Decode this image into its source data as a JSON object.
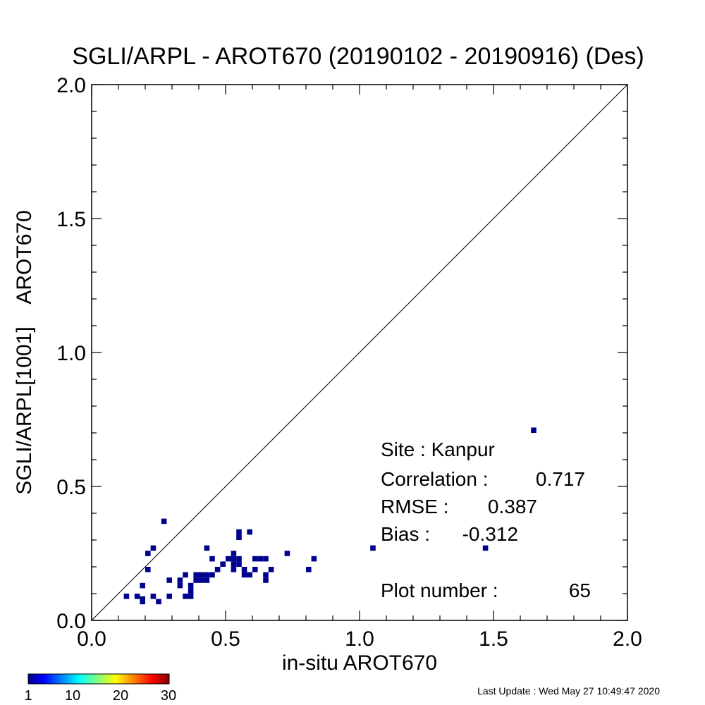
{
  "chart_data": {
    "type": "heatmap",
    "title": "SGLI/ARPL - AROT670 (20190102 - 20190916) (Des)",
    "xlabel": "in-situ AROT670",
    "ylabel": "SGLI/ARPL[1001]    AROT670",
    "xlim": [
      0.0,
      2.0
    ],
    "ylim": [
      0.0,
      2.0
    ],
    "x_tick_labels": [
      "0.0",
      "0.5",
      "1.0",
      "1.5",
      "2.0"
    ],
    "y_tick_labels": [
      "0.0",
      "0.5",
      "1.0",
      "1.5",
      "2.0"
    ],
    "x_ticks": [
      0.0,
      0.5,
      1.0,
      1.5,
      2.0
    ],
    "y_ticks": [
      0.0,
      0.5,
      1.0,
      1.5,
      2.0
    ],
    "reference_line": "1:1",
    "bin_size": 0.02,
    "cell_color": "#00008f",
    "points": [
      [
        0.13,
        0.09
      ],
      [
        0.17,
        0.09
      ],
      [
        0.19,
        0.08
      ],
      [
        0.19,
        0.07
      ],
      [
        0.19,
        0.13
      ],
      [
        0.21,
        0.19
      ],
      [
        0.21,
        0.25
      ],
      [
        0.23,
        0.27
      ],
      [
        0.23,
        0.09
      ],
      [
        0.25,
        0.07
      ],
      [
        0.27,
        0.37
      ],
      [
        0.29,
        0.09
      ],
      [
        0.29,
        0.15
      ],
      [
        0.33,
        0.15
      ],
      [
        0.33,
        0.13
      ],
      [
        0.35,
        0.09
      ],
      [
        0.35,
        0.17
      ],
      [
        0.37,
        0.09
      ],
      [
        0.37,
        0.11
      ],
      [
        0.37,
        0.13
      ],
      [
        0.39,
        0.17
      ],
      [
        0.39,
        0.15
      ],
      [
        0.41,
        0.15
      ],
      [
        0.41,
        0.17
      ],
      [
        0.43,
        0.15
      ],
      [
        0.43,
        0.17
      ],
      [
        0.43,
        0.27
      ],
      [
        0.45,
        0.17
      ],
      [
        0.45,
        0.23
      ],
      [
        0.47,
        0.19
      ],
      [
        0.49,
        0.21
      ],
      [
        0.51,
        0.23
      ],
      [
        0.53,
        0.25
      ],
      [
        0.53,
        0.23
      ],
      [
        0.53,
        0.21
      ],
      [
        0.53,
        0.19
      ],
      [
        0.55,
        0.23
      ],
      [
        0.55,
        0.21
      ],
      [
        0.55,
        0.31
      ],
      [
        0.55,
        0.33
      ],
      [
        0.57,
        0.17
      ],
      [
        0.57,
        0.19
      ],
      [
        0.59,
        0.17
      ],
      [
        0.59,
        0.33
      ],
      [
        0.61,
        0.19
      ],
      [
        0.61,
        0.23
      ],
      [
        0.63,
        0.23
      ],
      [
        0.65,
        0.23
      ],
      [
        0.65,
        0.17
      ],
      [
        0.65,
        0.15
      ],
      [
        0.67,
        0.19
      ],
      [
        0.73,
        0.25
      ],
      [
        0.81,
        0.19
      ],
      [
        0.83,
        0.23
      ],
      [
        1.05,
        0.27
      ],
      [
        1.47,
        0.27
      ],
      [
        1.65,
        0.71
      ]
    ],
    "colorbar": {
      "tick_labels": [
        "1",
        "10",
        "20",
        "30"
      ],
      "min": 1,
      "max": 30,
      "colormap": "jet"
    },
    "annotations": {
      "site": "Site : Kanpur",
      "correlation_label": "Correlation :",
      "correlation_value": "0.717",
      "rmse_label": "RMSE :",
      "rmse_value": "0.387",
      "bias_label": "Bias :",
      "bias_value": "-0.312",
      "plot_number_label": "Plot number :",
      "plot_number_value": "65"
    }
  },
  "footer": {
    "last_update": "Last Update : Wed May 27 10:49:47 2020"
  }
}
